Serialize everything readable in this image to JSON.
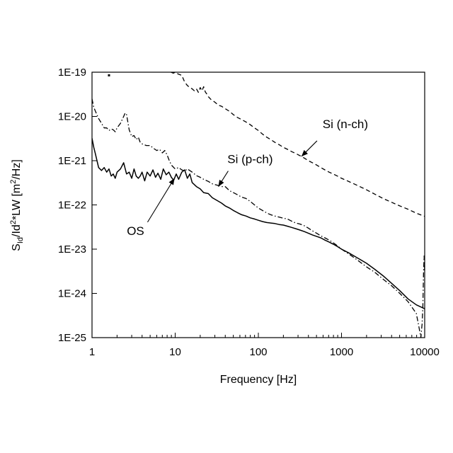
{
  "chart_data": {
    "type": "line",
    "xlabel": "Frequency [Hz]",
    "ylabel": {
      "base": "S",
      "sub": "Id",
      "rest1": "/Id",
      "sup1": "2",
      "rest2": "*LW [m",
      "sup2": "2",
      "rest3": "/Hz]"
    },
    "x_scale": "log",
    "y_scale": "log",
    "xlim": [
      1,
      10000
    ],
    "ylim": [
      1e-25,
      1e-19
    ],
    "x_ticks": [
      1,
      10,
      100,
      1000,
      10000
    ],
    "x_tick_labels": [
      "1",
      "10",
      "100",
      "1000",
      "10000"
    ],
    "y_ticks": [
      1e-25,
      1e-24,
      1e-23,
      1e-22,
      1e-21,
      1e-20,
      1e-19
    ],
    "y_tick_labels": [
      "1E-25",
      "1E-24",
      "1E-23",
      "1E-22",
      "1E-21",
      "1E-20",
      "1E-19"
    ],
    "grid": false,
    "legend": "none",
    "series": [
      {
        "name": "OS",
        "style": "solid",
        "color": "#000000",
        "x": [
          1,
          1.05,
          1.1,
          1.2,
          1.3,
          1.4,
          1.5,
          1.6,
          1.7,
          1.8,
          1.9,
          2.0,
          2.2,
          2.4,
          2.6,
          2.8,
          3.0,
          3.2,
          3.4,
          3.6,
          3.8,
          4.0,
          4.3,
          4.6,
          5.0,
          5.4,
          5.8,
          6.2,
          6.7,
          7.2,
          7.8,
          8.4,
          9.0,
          9.6,
          10.3,
          11,
          12,
          13,
          14,
          15,
          16,
          18,
          20,
          22,
          25,
          28,
          32,
          36,
          40,
          45,
          50,
          56,
          63,
          71,
          80,
          90,
          100,
          112,
          126,
          141,
          158,
          178,
          200,
          224,
          251,
          282,
          316,
          355,
          398,
          447,
          501,
          562,
          631,
          708,
          794,
          891,
          1000,
          1259,
          1585,
          1995,
          2512,
          3162,
          3981,
          5012,
          6310,
          7943,
          10000
        ],
        "y": [
          3.2e-21,
          2e-21,
          1.4e-21,
          7e-22,
          6e-22,
          7e-22,
          5.5e-22,
          6.5e-22,
          4.5e-22,
          5e-22,
          4e-22,
          5.5e-22,
          6.5e-22,
          9e-22,
          5e-22,
          5.5e-22,
          4e-22,
          6.5e-22,
          4.5e-22,
          4e-22,
          4.5e-22,
          5.5e-22,
          3.5e-22,
          5.5e-22,
          4.5e-22,
          6.2e-22,
          4.2e-22,
          5.2e-22,
          3.8e-22,
          6.5e-22,
          4.8e-22,
          5.5e-22,
          4.2e-22,
          3.6e-22,
          5e-22,
          3.8e-22,
          5.5e-22,
          6.2e-22,
          4e-22,
          5e-22,
          3.2e-22,
          2.6e-22,
          2.3e-22,
          1.9e-22,
          1.8e-22,
          1.45e-22,
          1.25e-22,
          1.1e-22,
          9.5e-23,
          8.5e-23,
          7.5e-23,
          6.7e-23,
          6e-23,
          5.6e-23,
          5.1e-23,
          4.8e-23,
          4.5e-23,
          4.2e-23,
          4e-23,
          3.9e-23,
          3.8e-23,
          3.6e-23,
          3.5e-23,
          3.3e-23,
          3.1e-23,
          2.9e-23,
          2.7e-23,
          2.5e-23,
          2.3e-23,
          2.1e-23,
          1.95e-23,
          1.8e-23,
          1.6e-23,
          1.45e-23,
          1.3e-23,
          1.15e-23,
          1e-23,
          8e-24,
          6.2e-24,
          4.8e-24,
          3.5e-24,
          2.5e-24,
          1.7e-24,
          1.15e-24,
          7.5e-25,
          5.5e-25,
          4.5e-25
        ]
      },
      {
        "name": "Si (p-ch)",
        "style": "dashdot",
        "color": "#000000",
        "x": [
          1,
          1.05,
          1.1,
          1.2,
          1.3,
          1.4,
          1.5,
          1.6,
          1.7,
          1.8,
          1.9,
          2.0,
          2.2,
          2.4,
          2.5,
          2.6,
          2.8,
          3.0,
          3.2,
          3.4,
          3.6,
          3.8,
          4.0,
          4.5,
          5.0,
          5.5,
          6.0,
          6.5,
          7.0,
          7.5,
          8.0,
          8.5,
          9.0,
          10,
          11,
          12,
          13,
          14,
          16,
          18,
          20,
          22,
          25,
          28,
          32,
          36,
          40,
          45,
          50,
          56,
          63,
          71,
          80,
          90,
          100,
          112,
          126,
          141,
          158,
          178,
          200,
          224,
          251,
          282,
          316,
          355,
          398,
          447,
          501,
          562,
          631,
          708,
          794,
          891,
          1000,
          1259,
          1585,
          1995,
          2512,
          3162,
          3981,
          5012,
          6310,
          7943,
          8500,
          9000,
          9300,
          9500,
          9700,
          9850,
          10000
        ],
        "y": [
          2.5e-20,
          1.6e-20,
          1.3e-20,
          9e-21,
          7e-21,
          5.5e-21,
          5.5e-21,
          4.8e-21,
          5.2e-21,
          5e-21,
          4.5e-21,
          5.5e-21,
          7e-21,
          1e-20,
          1.2e-20,
          1.1e-20,
          5e-21,
          3.5e-21,
          3.7e-21,
          3e-21,
          3.4e-21,
          2.6e-21,
          2.4e-21,
          2.2e-21,
          2.2e-21,
          1.9e-21,
          1.7e-21,
          1.8e-21,
          1.5e-21,
          1.7e-21,
          1.35e-21,
          1e-21,
          8e-22,
          6.5e-22,
          7e-22,
          6.2e-22,
          5.8e-22,
          6.5e-22,
          5.5e-22,
          4.6e-22,
          4.2e-22,
          3.8e-22,
          3.4e-22,
          3e-22,
          2.8e-22,
          2.6e-22,
          2.6e-22,
          2.1e-22,
          1.9e-22,
          1.7e-22,
          1.5e-22,
          1.4e-22,
          1.2e-22,
          1e-22,
          8.5e-23,
          7.5e-23,
          6.6e-23,
          6e-23,
          5.6e-23,
          5.3e-23,
          5e-23,
          4.8e-23,
          4.3e-23,
          3.9e-23,
          3.7e-23,
          3.4e-23,
          3e-23,
          2.6e-23,
          2.3e-23,
          2e-23,
          1.8e-23,
          1.6e-23,
          1.4e-23,
          1.2e-23,
          1e-23,
          7.5e-24,
          5.5e-24,
          4e-24,
          3e-24,
          2.1e-24,
          1.5e-24,
          1e-24,
          6.5e-25,
          3.5e-25,
          1.8e-25,
          1e-25,
          2e-25,
          5e-25,
          3e-24,
          7e-24,
          3e-24
        ]
      },
      {
        "name": "Si (n-ch)",
        "style": "dashed",
        "color": "#000000",
        "x": [
          8.9,
          9.5,
          10,
          11,
          12,
          13,
          14,
          15,
          16,
          17,
          18,
          19,
          20,
          21,
          22,
          23,
          24,
          25,
          27,
          30,
          33,
          36,
          40,
          45,
          50,
          56,
          63,
          71,
          80,
          90,
          100,
          112,
          126,
          141,
          158,
          178,
          200,
          224,
          251,
          282,
          316,
          355,
          398,
          447,
          501,
          562,
          631,
          708,
          794,
          891,
          1000,
          1259,
          1585,
          1995,
          2512,
          3162,
          3981,
          5012,
          6310,
          7943,
          10000
        ],
        "y": [
          1e-19,
          9.5e-20,
          1e-19,
          9e-20,
          8.5e-20,
          6e-20,
          5e-20,
          4.5e-20,
          4.2e-20,
          3.8e-20,
          4.2e-20,
          3.5e-20,
          4.5e-20,
          3.8e-20,
          4.7e-20,
          3.6e-20,
          3.2e-20,
          2.8e-20,
          2.4e-20,
          2.1e-20,
          1.8e-20,
          1.7e-20,
          1.5e-20,
          1.3e-20,
          1.1e-20,
          9.5e-21,
          8.5e-21,
          7.5e-21,
          6.5e-21,
          5.5e-21,
          4.8e-21,
          4e-21,
          3.4e-21,
          3e-21,
          2.6e-21,
          2.3e-21,
          2e-21,
          1.8e-21,
          1.6e-21,
          1.45e-21,
          1.3e-21,
          1.15e-21,
          1e-21,
          9e-22,
          8e-22,
          7e-22,
          6.2e-22,
          5.5e-22,
          5e-22,
          4.5e-22,
          4e-22,
          3.3e-22,
          2.7e-22,
          2.2e-22,
          1.75e-22,
          1.4e-22,
          1.15e-22,
          9.5e-23,
          8e-23,
          6.5e-23,
          5.5e-23
        ]
      }
    ],
    "outliers": [
      {
        "x": 1.6,
        "y": 8.5e-20
      }
    ],
    "annotations": [
      {
        "text": "OS",
        "target_x": 9.8,
        "target_y": 4e-22
      },
      {
        "text": "Si (p-ch)",
        "target_x": 33,
        "target_y": 2.6e-22
      },
      {
        "text": "Si (n-ch)",
        "target_x": 330,
        "target_y": 1.25e-21
      }
    ]
  }
}
